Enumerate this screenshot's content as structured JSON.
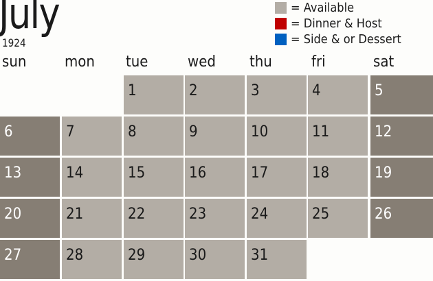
{
  "header": {
    "month": "July",
    "year": "1924"
  },
  "legend": [
    {
      "label": "= Available",
      "color": "#b3ada5"
    },
    {
      "label": "= Dinner & Host",
      "color": "#c00000"
    },
    {
      "label": "= Side & or Dessert",
      "color": "#0060c0"
    }
  ],
  "weekdays": [
    "sun",
    "mon",
    "tue",
    "wed",
    "thu",
    "fri",
    "sat"
  ],
  "calendar": {
    "first_weekday_index": 2,
    "days": [
      "1",
      "2",
      "3",
      "4",
      "5",
      "6",
      "7",
      "8",
      "9",
      "10",
      "11",
      "12",
      "13",
      "14",
      "15",
      "16",
      "17",
      "18",
      "19",
      "20",
      "21",
      "22",
      "23",
      "24",
      "25",
      "26",
      "27",
      "28",
      "29",
      "30",
      "31"
    ],
    "weekday_color": "#b3ada5",
    "weekend_color": "#867e74"
  }
}
